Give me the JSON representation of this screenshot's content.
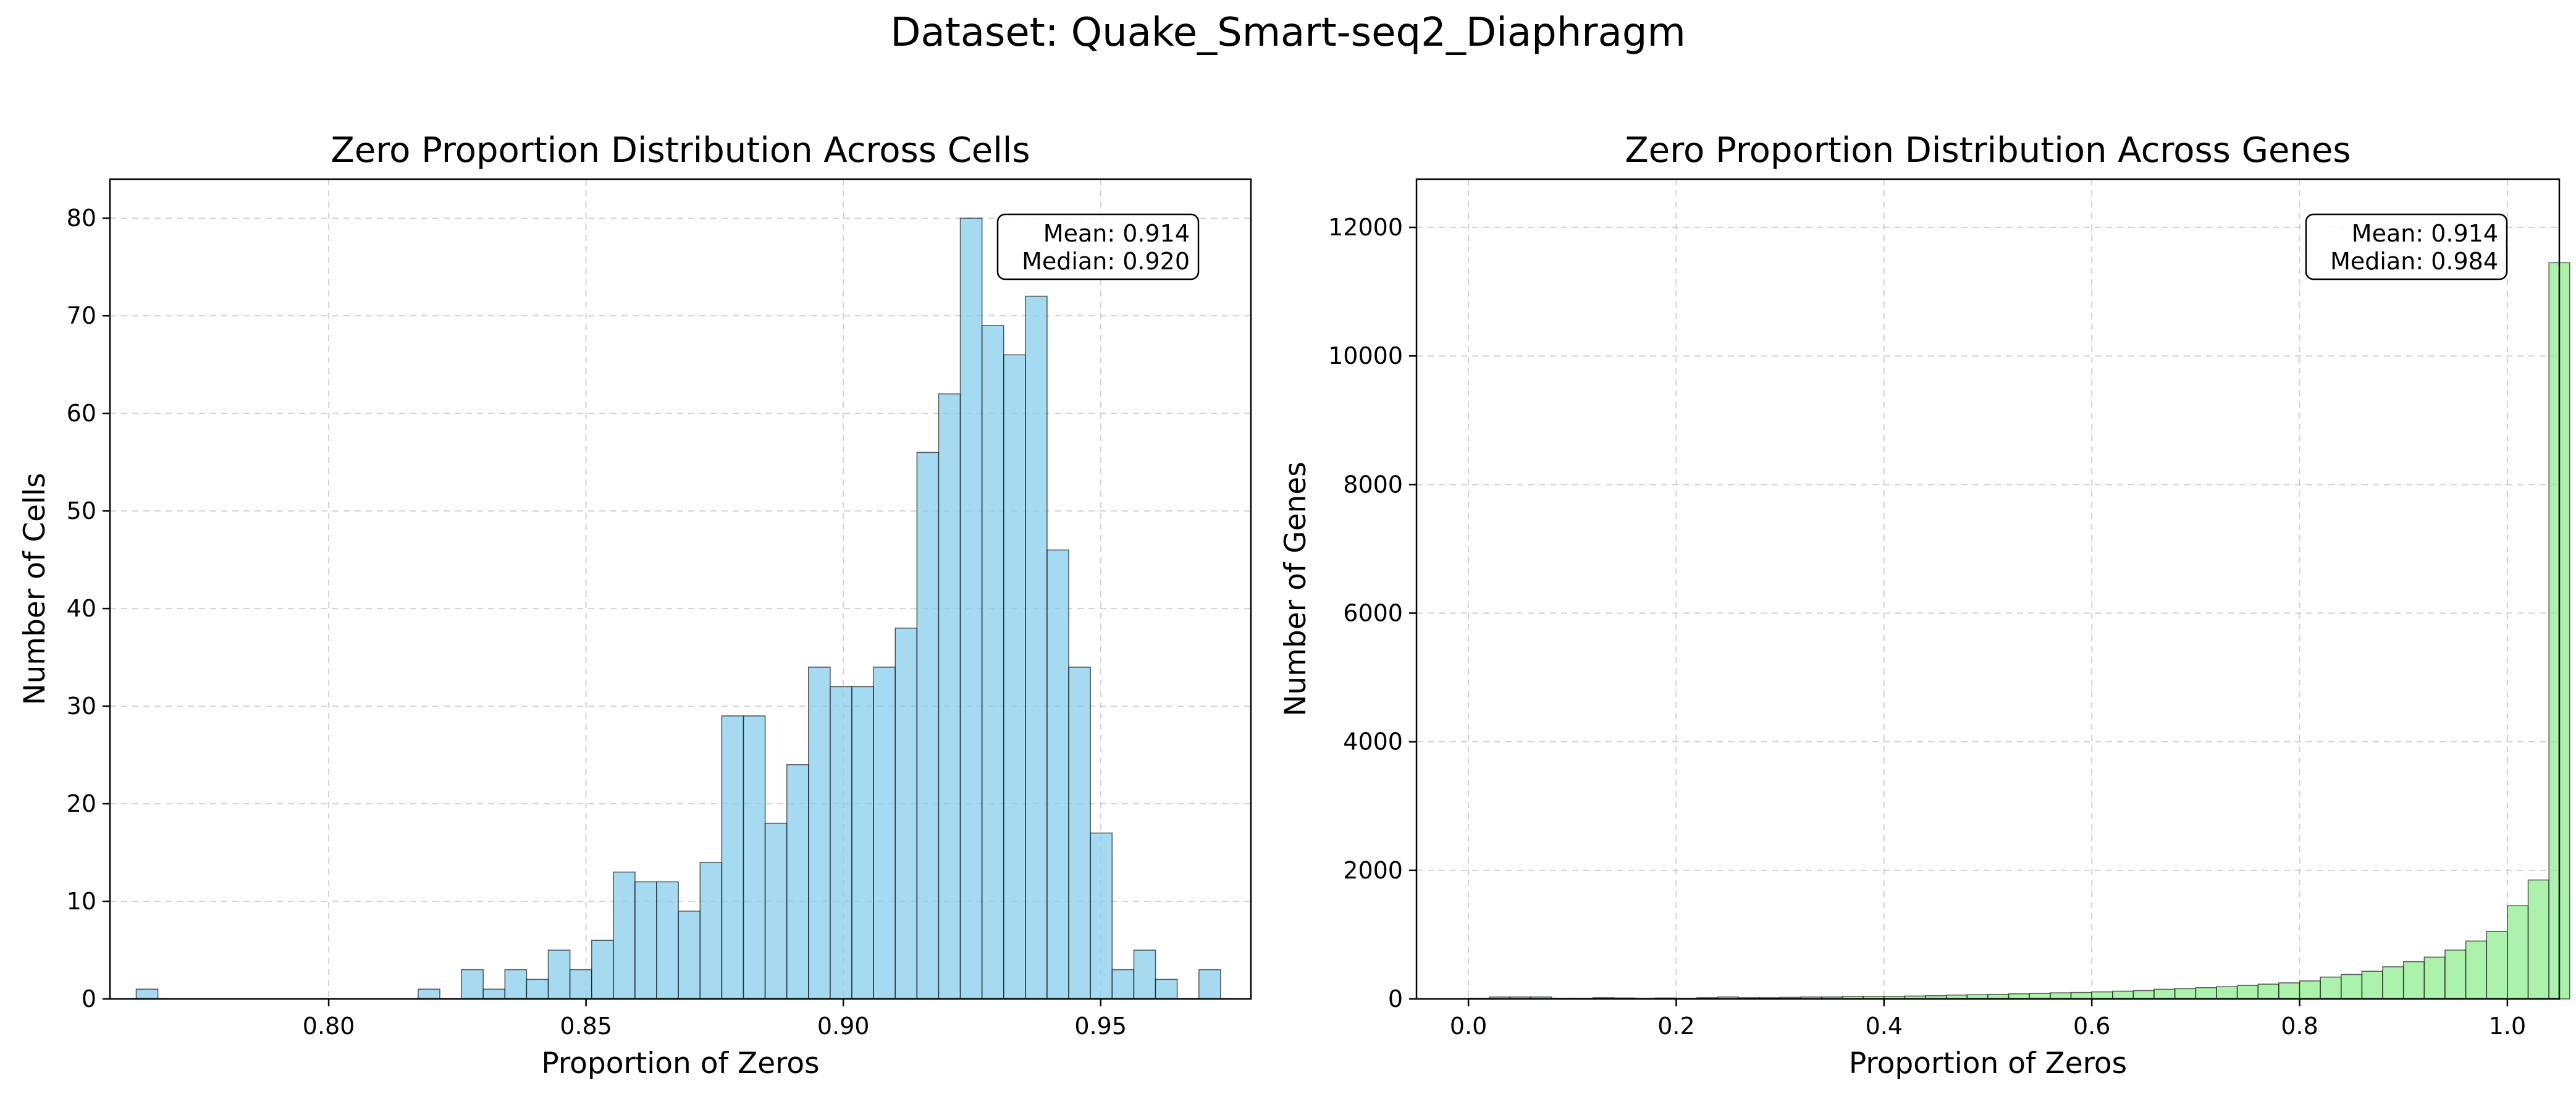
{
  "suptitle": "Dataset: Quake_Smart-seq2_Diaphragm",
  "chart_data": [
    {
      "type": "bar",
      "subtype": "histogram",
      "title": "Zero Proportion Distribution Across Cells",
      "xlabel": "Proportion of Zeros",
      "ylabel": "Number of Cells",
      "xlim": [
        0.7575,
        0.9792
      ],
      "ylim": [
        0,
        84
      ],
      "xticks": [
        0.8,
        0.85,
        0.9,
        0.95
      ],
      "xtick_labels": [
        "0.80",
        "0.85",
        "0.90",
        "0.95"
      ],
      "yticks": [
        0,
        10,
        20,
        30,
        40,
        50,
        60,
        70,
        80
      ],
      "ytick_labels": [
        "0",
        "10",
        "20",
        "30",
        "40",
        "50",
        "60",
        "70",
        "80"
      ],
      "bin_start": 0.7626,
      "bin_width": 0.004214,
      "values": [
        1,
        0,
        0,
        0,
        0,
        0,
        0,
        0,
        0,
        0,
        0,
        0,
        0,
        1,
        0,
        3,
        1,
        3,
        2,
        5,
        3,
        6,
        13,
        12,
        12,
        9,
        14,
        29,
        29,
        18,
        24,
        34,
        32,
        32,
        34,
        38,
        56,
        62,
        80,
        69,
        66,
        72,
        46,
        34,
        17,
        3,
        5,
        2,
        0,
        3
      ],
      "annotation": [
        "Mean: 0.914",
        "Median: 0.920"
      ],
      "grid": true,
      "color": "#87ceeb",
      "edgecolor": "#000000"
    },
    {
      "type": "bar",
      "subtype": "histogram",
      "title": "Zero Proportion Distribution Across Genes",
      "xlabel": "Proportion of Zeros",
      "ylabel": "Number of Genes",
      "xlim": [
        -0.05,
        1.05
      ],
      "ylim": [
        0,
        12750
      ],
      "xticks": [
        0.0,
        0.2,
        0.4,
        0.6,
        0.8,
        1.0
      ],
      "xtick_labels": [
        "0.0",
        "0.2",
        "0.4",
        "0.6",
        "0.8",
        "1.0"
      ],
      "yticks": [
        0,
        2000,
        4000,
        6000,
        8000,
        10000,
        12000
      ],
      "ytick_labels": [
        "0",
        "2000",
        "4000",
        "6000",
        "8000",
        "10000",
        "12000"
      ],
      "bin_start": 0.0,
      "bin_width": 0.02,
      "values": [
        10,
        30,
        30,
        30,
        10,
        10,
        20,
        15,
        10,
        15,
        10,
        20,
        30,
        20,
        20,
        25,
        30,
        30,
        40,
        40,
        40,
        45,
        50,
        60,
        65,
        70,
        80,
        85,
        95,
        100,
        110,
        120,
        130,
        150,
        160,
        175,
        190,
        210,
        230,
        250,
        280,
        340,
        380,
        430,
        500,
        580,
        650,
        760,
        900,
        1050,
        1450,
        1850,
        11450
      ],
      "annotation": [
        "Mean: 0.914",
        "Median: 0.984"
      ],
      "grid": true,
      "color": "#90ee90",
      "edgecolor": "#000000"
    }
  ]
}
